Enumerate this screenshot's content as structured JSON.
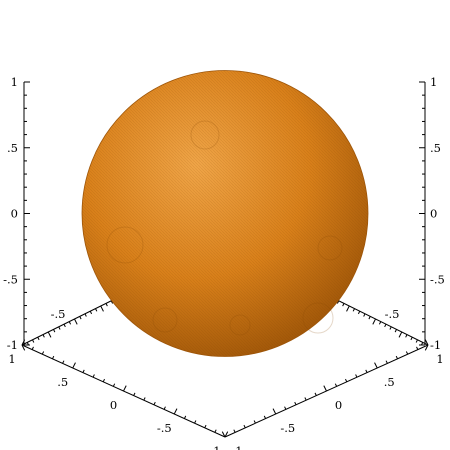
{
  "chart_data": {
    "type": "surface",
    "shape": "sphere",
    "center": [
      0,
      0,
      0
    ],
    "radius": 1,
    "surface_color": "#d9801a",
    "highlight_color": "#f0a548",
    "shadow_color": "#9e5508",
    "axes": {
      "x": {
        "range": [
          -1,
          1
        ],
        "ticks": [
          {
            "v": 1,
            "label": "1"
          },
          {
            "v": 0.5,
            "label": ".5"
          },
          {
            "v": 0,
            "label": "0"
          },
          {
            "v": -0.5,
            "label": "-.5"
          },
          {
            "v": -1,
            "label": "-1"
          }
        ]
      },
      "y": {
        "range": [
          -1,
          1
        ],
        "ticks": [
          {
            "v": -1,
            "label": "-1"
          },
          {
            "v": -0.5,
            "label": "-.5"
          },
          {
            "v": 0,
            "label": "0"
          },
          {
            "v": 0.5,
            "label": ".5"
          },
          {
            "v": 1,
            "label": "1"
          }
        ]
      },
      "z": {
        "range": [
          -1,
          1
        ],
        "ticks": [
          {
            "v": 1,
            "label": "1"
          },
          {
            "v": 0.5,
            "label": ".5"
          },
          {
            "v": 0,
            "label": "0"
          },
          {
            "v": -0.5,
            "label": "-.5"
          },
          {
            "v": -1,
            "label": "-1"
          }
        ]
      },
      "x_back": {
        "ticks": [
          {
            "v": -0.5,
            "label": "-.5"
          }
        ]
      },
      "y_back": {
        "ticks": [
          {
            "v": -0.5,
            "label": "-.5"
          }
        ]
      }
    }
  }
}
